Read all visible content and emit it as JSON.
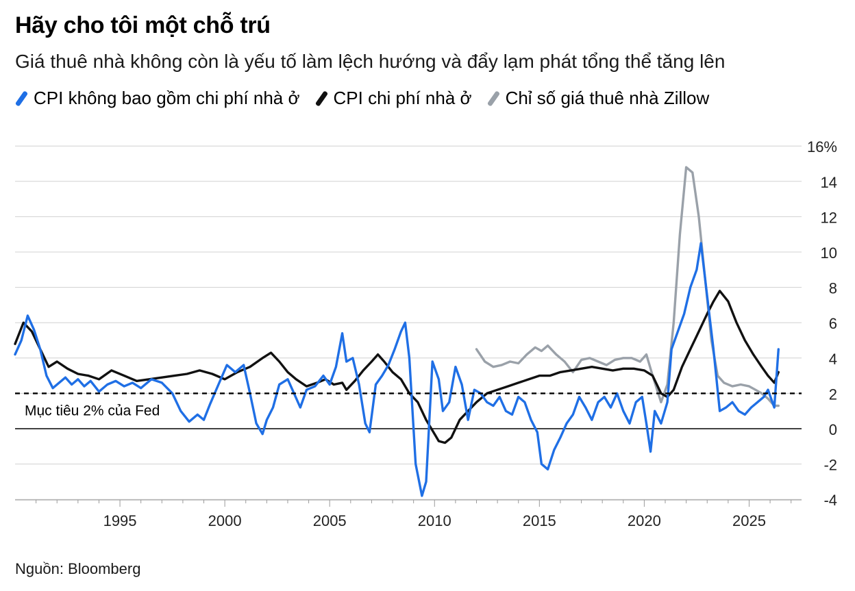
{
  "title": "Hãy cho tôi một chỗ trú",
  "subtitle": "Giá thuê nhà không còn là yếu tố làm lệch hướng và đẩy lạm phát tổng thể tăng lên",
  "source": "Nguồn: Bloomberg",
  "colors": {
    "core_ex_shelter": "#1f6fe5",
    "shelter": "#111111",
    "zillow": "#9aa1a9",
    "grid": "#d0d0d0"
  },
  "legend": [
    {
      "label": "CPI không bao gồm chi phí nhà ở",
      "color": "#1f6fe5"
    },
    {
      "label": "CPI chi phí nhà ở",
      "color": "#111111"
    },
    {
      "label": "Chỉ số giá thuê nhà Zillow",
      "color": "#9aa1a9"
    }
  ],
  "chart_data": {
    "type": "line",
    "title": "Hãy cho tôi một chỗ trú",
    "xlabel": "",
    "ylabel": "",
    "xlim": [
      1990.0,
      2027.5
    ],
    "ylim": [
      -5,
      16
    ],
    "x_ticks": [
      1995,
      2000,
      2005,
      2010,
      2015,
      2020,
      2025
    ],
    "y_ticks": [
      -4,
      -2,
      0,
      2,
      4,
      6,
      8,
      10,
      12,
      14,
      16
    ],
    "y_tick_labels": [
      "-4",
      "-2",
      "0",
      "2",
      "4",
      "6",
      "8",
      "10",
      "12",
      "14",
      "16%"
    ],
    "y_axis_side": "right",
    "grid": "horizontal",
    "reference_line": {
      "value": 2,
      "style": "dashed",
      "label": "Mục tiêu 2% của Fed"
    },
    "series": [
      {
        "name": "CPI không bao gồm chi phí nhà ở",
        "color": "#1f6fe5",
        "x": [
          1990.0,
          1990.3,
          1990.6,
          1990.9,
          1991.2,
          1991.5,
          1991.8,
          1992.1,
          1992.4,
          1992.7,
          1993.0,
          1993.3,
          1993.6,
          1994.0,
          1994.4,
          1994.8,
          1995.2,
          1995.6,
          1996.0,
          1996.5,
          1997.0,
          1997.5,
          1997.9,
          1998.3,
          1998.7,
          1999.0,
          1999.3,
          1999.7,
          2000.1,
          2000.5,
          2000.9,
          2001.2,
          2001.5,
          2001.8,
          2002.0,
          2002.3,
          2002.6,
          2003.0,
          2003.3,
          2003.6,
          2003.9,
          2004.3,
          2004.7,
          2005.0,
          2005.3,
          2005.6,
          2005.8,
          2006.1,
          2006.4,
          2006.7,
          2006.9,
          2007.2,
          2007.5,
          2007.8,
          2008.1,
          2008.4,
          2008.6,
          2008.8,
          2009.1,
          2009.4,
          2009.6,
          2009.9,
          2010.2,
          2010.4,
          2010.7,
          2011.0,
          2011.3,
          2011.6,
          2011.9,
          2012.2,
          2012.5,
          2012.8,
          2013.1,
          2013.4,
          2013.7,
          2014.0,
          2014.3,
          2014.6,
          2014.9,
          2015.1,
          2015.4,
          2015.7,
          2016.0,
          2016.3,
          2016.6,
          2016.9,
          2017.2,
          2017.5,
          2017.8,
          2018.1,
          2018.4,
          2018.7,
          2019.0,
          2019.3,
          2019.6,
          2019.9,
          2020.1,
          2020.3,
          2020.5,
          2020.8,
          2021.1,
          2021.3,
          2021.6,
          2021.9,
          2022.2,
          2022.5,
          2022.7,
          2023.0,
          2023.3,
          2023.6,
          2023.9,
          2024.2,
          2024.5,
          2024.8,
          2025.1,
          2025.4,
          2025.7,
          2025.9,
          2026.2,
          2026.4
        ],
        "values": [
          4.2,
          5.0,
          6.4,
          5.6,
          4.5,
          3.0,
          2.3,
          2.6,
          2.9,
          2.5,
          2.8,
          2.4,
          2.7,
          2.1,
          2.5,
          2.7,
          2.4,
          2.6,
          2.3,
          2.8,
          2.6,
          2.0,
          1.0,
          0.4,
          0.8,
          0.5,
          1.4,
          2.5,
          3.6,
          3.2,
          3.6,
          2.0,
          0.3,
          -0.3,
          0.5,
          1.2,
          2.5,
          2.8,
          2.0,
          1.2,
          2.2,
          2.4,
          3.0,
          2.5,
          3.5,
          5.4,
          3.8,
          4.0,
          2.5,
          0.3,
          -0.2,
          2.5,
          3.0,
          3.6,
          4.5,
          5.5,
          6.0,
          4.0,
          -2.0,
          -3.8,
          -3.0,
          3.8,
          2.8,
          1.0,
          1.5,
          3.5,
          2.5,
          0.5,
          2.2,
          2.0,
          1.5,
          1.3,
          1.8,
          1.0,
          0.8,
          1.8,
          1.5,
          0.5,
          -0.2,
          -2.0,
          -2.3,
          -1.2,
          -0.5,
          0.3,
          0.8,
          1.8,
          1.2,
          0.5,
          1.5,
          1.8,
          1.2,
          2.0,
          1.0,
          0.3,
          1.5,
          1.8,
          0.3,
          -1.3,
          1.0,
          0.3,
          1.5,
          4.5,
          5.5,
          6.5,
          8.0,
          9.0,
          10.5,
          7.5,
          4.5,
          1.0,
          1.2,
          1.5,
          1.0,
          0.8,
          1.2,
          1.5,
          1.8,
          2.2,
          1.2,
          4.5
        ]
      },
      {
        "name": "CPI chi phí nhà ở",
        "color": "#111111",
        "x": [
          1990.0,
          1990.4,
          1990.8,
          1991.2,
          1991.6,
          1992.0,
          1992.5,
          1993.0,
          1993.5,
          1994.0,
          1994.6,
          1995.2,
          1995.8,
          1996.4,
          1997.0,
          1997.6,
          1998.2,
          1998.8,
          1999.4,
          2000.0,
          2000.6,
          2001.2,
          2001.8,
          2002.2,
          2002.6,
          2003.0,
          2003.4,
          2003.9,
          2004.4,
          2004.8,
          2005.2,
          2005.6,
          2005.8,
          2006.2,
          2006.6,
          2007.0,
          2007.3,
          2007.6,
          2008.0,
          2008.4,
          2008.8,
          2009.2,
          2009.6,
          2010.0,
          2010.2,
          2010.5,
          2010.8,
          2011.2,
          2011.6,
          2012.0,
          2012.5,
          2013.0,
          2013.5,
          2014.0,
          2014.5,
          2015.0,
          2015.5,
          2016.0,
          2016.5,
          2017.0,
          2017.5,
          2018.0,
          2018.5,
          2019.0,
          2019.5,
          2020.0,
          2020.4,
          2020.8,
          2021.1,
          2021.4,
          2021.8,
          2022.2,
          2022.6,
          2023.0,
          2023.3,
          2023.6,
          2024.0,
          2024.4,
          2024.8,
          2025.2,
          2025.6,
          2025.9,
          2026.2,
          2026.4
        ],
        "values": [
          4.8,
          6.0,
          5.5,
          4.5,
          3.5,
          3.8,
          3.4,
          3.1,
          3.0,
          2.8,
          3.3,
          3.0,
          2.7,
          2.8,
          2.9,
          3.0,
          3.1,
          3.3,
          3.1,
          2.8,
          3.2,
          3.5,
          4.0,
          4.3,
          3.8,
          3.2,
          2.8,
          2.4,
          2.6,
          2.8,
          2.5,
          2.6,
          2.2,
          2.7,
          3.3,
          3.8,
          4.2,
          3.8,
          3.2,
          2.8,
          2.0,
          1.5,
          0.5,
          -0.3,
          -0.7,
          -0.8,
          -0.5,
          0.5,
          1.0,
          1.5,
          2.0,
          2.2,
          2.4,
          2.6,
          2.8,
          3.0,
          3.0,
          3.2,
          3.3,
          3.4,
          3.5,
          3.4,
          3.3,
          3.4,
          3.4,
          3.3,
          3.0,
          2.0,
          1.8,
          2.2,
          3.5,
          4.5,
          5.5,
          6.5,
          7.2,
          7.8,
          7.2,
          6.0,
          5.0,
          4.2,
          3.5,
          3.0,
          2.6,
          3.2
        ]
      },
      {
        "name": "Chỉ số giá thuê nhà Zillow",
        "color": "#9aa1a9",
        "x": [
          2012.0,
          2012.4,
          2012.8,
          2013.2,
          2013.6,
          2014.0,
          2014.4,
          2014.8,
          2015.1,
          2015.4,
          2015.8,
          2016.2,
          2016.6,
          2017.0,
          2017.4,
          2017.8,
          2018.2,
          2018.6,
          2019.0,
          2019.4,
          2019.8,
          2020.1,
          2020.4,
          2020.8,
          2021.1,
          2021.4,
          2021.7,
          2022.0,
          2022.3,
          2022.6,
          2022.9,
          2023.2,
          2023.5,
          2023.8,
          2024.2,
          2024.6,
          2025.0,
          2025.3,
          2025.6,
          2025.9,
          2026.2,
          2026.4
        ],
        "values": [
          4.5,
          3.8,
          3.5,
          3.6,
          3.8,
          3.7,
          4.2,
          4.6,
          4.4,
          4.7,
          4.2,
          3.8,
          3.2,
          3.9,
          4.0,
          3.8,
          3.6,
          3.9,
          4.0,
          4.0,
          3.8,
          4.2,
          3.0,
          1.5,
          2.5,
          6.0,
          11.0,
          14.8,
          14.5,
          12.0,
          8.5,
          5.0,
          3.0,
          2.6,
          2.4,
          2.5,
          2.4,
          2.2,
          2.0,
          1.7,
          1.3,
          1.3
        ]
      }
    ]
  }
}
